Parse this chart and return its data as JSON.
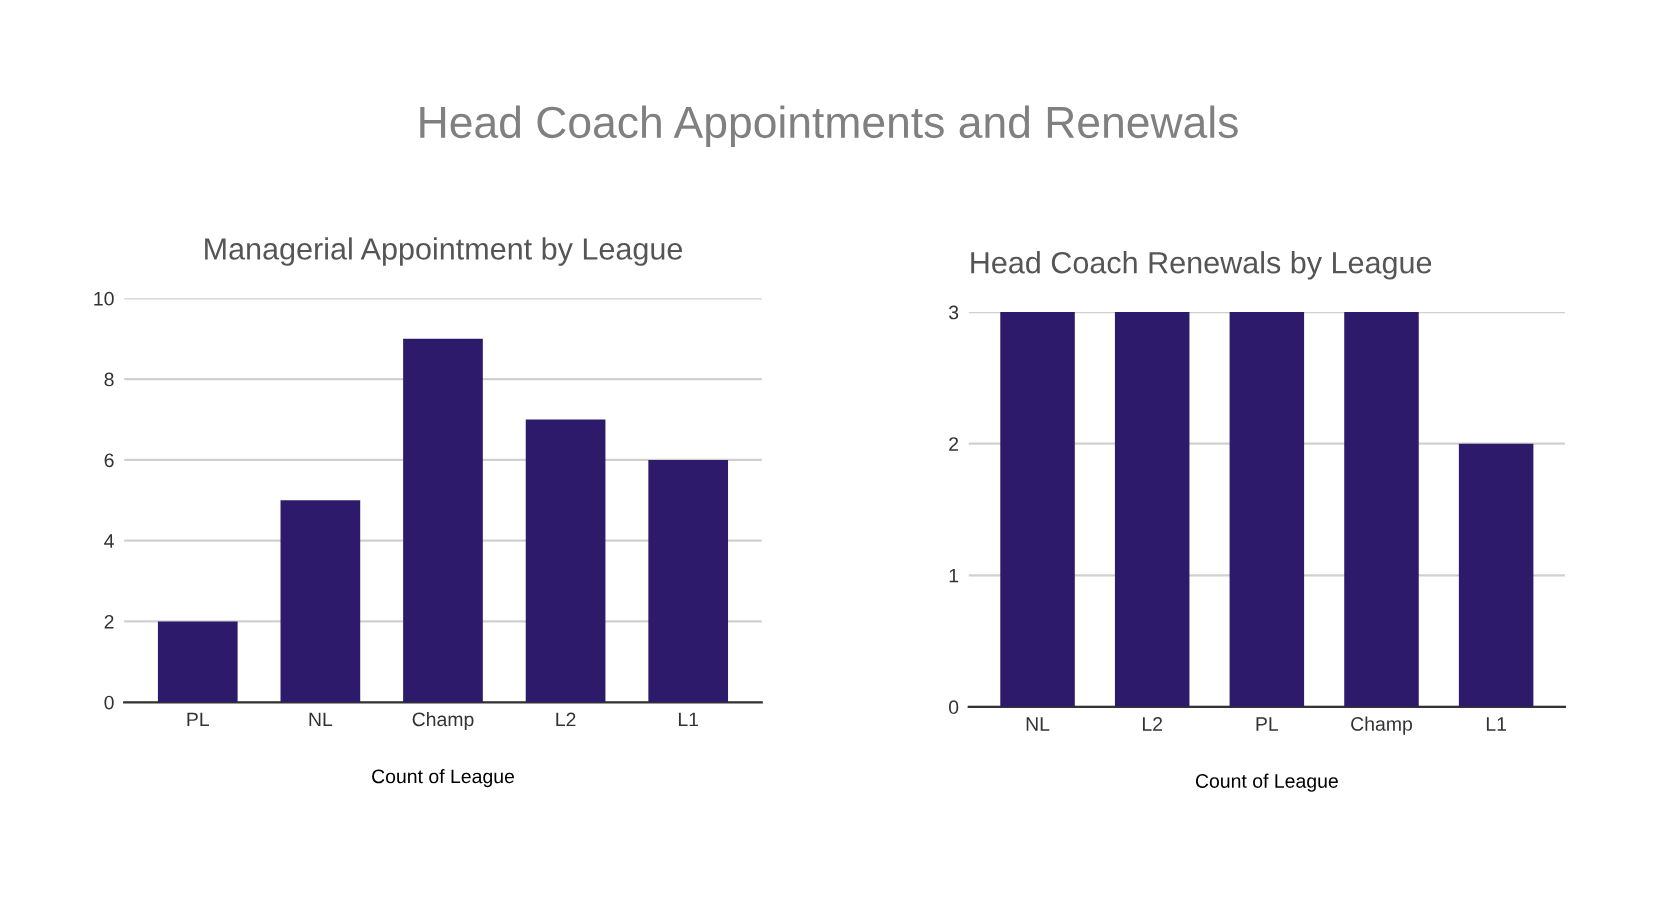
{
  "chart_data": [
    {
      "type": "bar",
      "title": "Managerial Appointment by League",
      "xlabel": "Count of League",
      "annotations": [
        "Head Coach Appointments and Renewals"
      ],
      "categories": [
        "PL",
        "NL",
        "Champ",
        "L2",
        "L1"
      ],
      "values": [
        2,
        5,
        9,
        7,
        6
      ],
      "color": "#2e1a6b",
      "ylim": [
        0,
        10
      ],
      "yticks": [
        0,
        2,
        4,
        6,
        8,
        10
      ],
      "grid": "y"
    },
    {
      "type": "bar",
      "title": "Head Coach Renewals by League",
      "xlabel": "Count of League",
      "categories": [
        "NL",
        "L2",
        "PL",
        "Champ",
        "L1"
      ],
      "values": [
        3,
        3,
        3,
        3,
        2
      ],
      "color": "#2e1a6b",
      "ylim": [
        0,
        3
      ],
      "yticks": [
        0,
        1,
        2,
        3
      ],
      "grid": "y"
    }
  ]
}
